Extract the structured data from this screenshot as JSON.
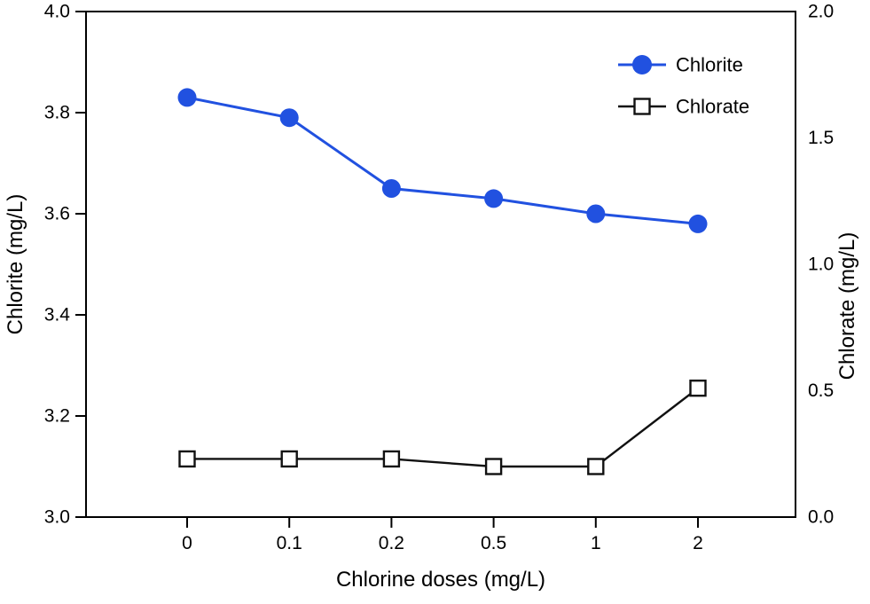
{
  "chart_data": {
    "type": "line",
    "categories": [
      "0",
      "0.1",
      "0.2",
      "0.5",
      "1",
      "2"
    ],
    "xlabel": "Chlorine doses (mg/L)",
    "left_axis": {
      "label": "Chlorite (mg/L)",
      "min": 3.0,
      "max": 4.0,
      "ticks": [
        "4.0",
        "3.8",
        "3.6",
        "3.4",
        "3.2",
        "3.0"
      ]
    },
    "right_axis": {
      "label": "Chlorate (mg/L)",
      "min": 0.0,
      "max": 2.0,
      "ticks": [
        "2.0",
        "1.5",
        "1.0",
        "0.5",
        "0.0"
      ]
    },
    "series": [
      {
        "name": "Chlorite",
        "axis": "left",
        "marker": "circle-filled",
        "color": "#2151e0",
        "values": [
          3.83,
          3.79,
          3.65,
          3.63,
          3.6,
          3.58
        ]
      },
      {
        "name": "Chlorate",
        "axis": "right",
        "marker": "square-open",
        "color": "#111111",
        "values": [
          0.23,
          0.23,
          0.23,
          0.2,
          0.2,
          0.51
        ]
      }
    ],
    "legend": {
      "position": "upper-right",
      "entries": [
        "Chlorite",
        "Chlorate"
      ]
    },
    "grid": false
  }
}
